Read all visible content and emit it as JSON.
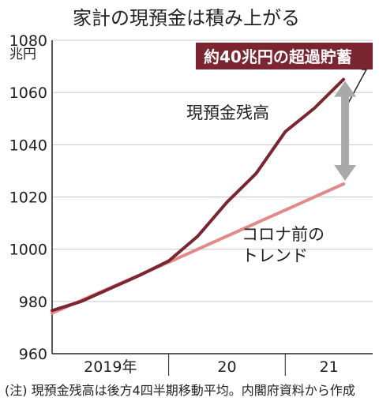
{
  "chart_data": {
    "type": "line",
    "title": "家計の現預金は積み上がる",
    "yunit": "兆円",
    "ylim": [
      960,
      1080
    ],
    "yticks": [
      960,
      980,
      1000,
      1020,
      1040,
      1060,
      1080
    ],
    "xlim": [
      2019.0,
      2021.75
    ],
    "x_tick_labels": [
      {
        "label": "2019年",
        "x": 2019.5
      },
      {
        "label": "20",
        "x": 2020.5
      },
      {
        "label": "21",
        "x": 2021.375
      }
    ],
    "x_dividers": [
      2020.0,
      2021.0
    ],
    "series": [
      {
        "name": "現預金残高",
        "color": "#7b2530",
        "points": [
          [
            2019.0,
            976.5
          ],
          [
            2019.25,
            980
          ],
          [
            2019.5,
            985
          ],
          [
            2019.75,
            990
          ],
          [
            2020.0,
            995.5
          ],
          [
            2020.25,
            1005
          ],
          [
            2020.5,
            1018
          ],
          [
            2020.75,
            1029
          ],
          [
            2021.0,
            1045
          ],
          [
            2021.25,
            1054
          ],
          [
            2021.5,
            1065
          ]
        ]
      },
      {
        "name": "コロナ前の\nトレンド",
        "color": "#e28a8a",
        "points": [
          [
            2019.0,
            975.5
          ],
          [
            2020.0,
            995
          ],
          [
            2021.5,
            1025
          ]
        ]
      }
    ],
    "annotation": {
      "text": "約40兆円の超過貯蓄",
      "arrow_x": 2021.5,
      "from": 1025,
      "to": 1065
    },
    "colors": {
      "callout_bg": "#7b2530",
      "arrow": "#a9a9a9"
    }
  },
  "note": "(注) 現預金残高は後方4四半期移動平均。内閣府資料から作成"
}
